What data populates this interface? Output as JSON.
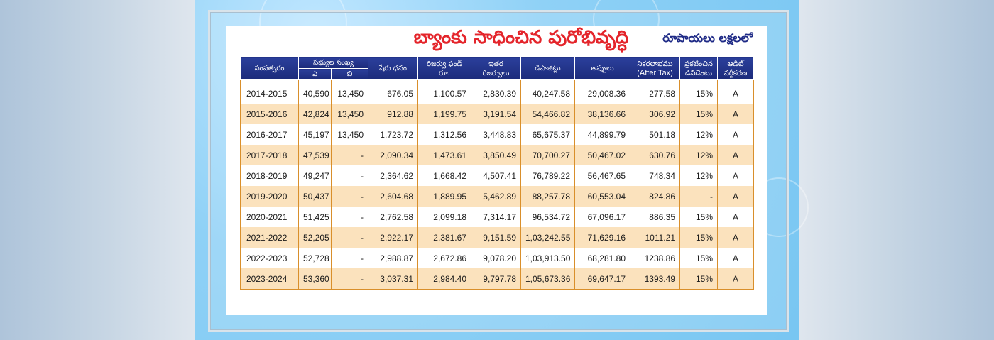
{
  "title": "బ్యాంకు సాధించిన పురోభివృద్ధి",
  "unit_note": "రూపాయలు లక్షలలో",
  "headers": {
    "year": "సంవత్సరం",
    "members": "సభ్యుల సంఖ్య",
    "members_a": "ఎ",
    "members_b": "బి",
    "share_capital": "షేరు ధనం",
    "reserve_fund_1": "రిజర్వు ఫండ్",
    "reserve_fund_2": "రూ.",
    "other_reserves_1": "ఇతర",
    "other_reserves_2": "రిజర్వులు",
    "deposits": "డిపాజిట్లు",
    "loans": "అప్పులు",
    "net_profit_1": "నికరలాభము",
    "net_profit_2": "(After Tax)",
    "dividend_1": "ప్రకటించిన",
    "dividend_2": "డివిడెంటు",
    "audit_1": "ఆడిట్",
    "audit_2": "వర్గీకరణ"
  },
  "rows": [
    {
      "year": "2014-2015",
      "a": "40,590",
      "b": "13,450",
      "share": "676.05",
      "reserve": "1,100.57",
      "other": "2,830.39",
      "deposits": "40,247.58",
      "loans": "29,008.36",
      "profit": "277.58",
      "dividend": "15%",
      "audit": "A"
    },
    {
      "year": "2015-2016",
      "a": "42,824",
      "b": "13,450",
      "share": "912.88",
      "reserve": "1,199.75",
      "other": "3,191.54",
      "deposits": "54,466.82",
      "loans": "38,136.66",
      "profit": "306.92",
      "dividend": "15%",
      "audit": "A"
    },
    {
      "year": "2016-2017",
      "a": "45,197",
      "b": "13,450",
      "share": "1,723.72",
      "reserve": "1,312.56",
      "other": "3,448.83",
      "deposits": "65,675.37",
      "loans": "44,899.79",
      "profit": "501.18",
      "dividend": "12%",
      "audit": "A"
    },
    {
      "year": "2017-2018",
      "a": "47,539",
      "b": "-",
      "share": "2,090.34",
      "reserve": "1,473.61",
      "other": "3,850.49",
      "deposits": "70,700.27",
      "loans": "50,467.02",
      "profit": "630.76",
      "dividend": "12%",
      "audit": "A"
    },
    {
      "year": "2018-2019",
      "a": "49,247",
      "b": "-",
      "share": "2,364.62",
      "reserve": "1,668.42",
      "other": "4,507.41",
      "deposits": "76,789.22",
      "loans": "56,467.65",
      "profit": "748.34",
      "dividend": "12%",
      "audit": "A"
    },
    {
      "year": "2019-2020",
      "a": "50,437",
      "b": "-",
      "share": "2,604.68",
      "reserve": "1,889.95",
      "other": "5,462.89",
      "deposits": "88,257.78",
      "loans": "60,553.04",
      "profit": "824.86",
      "dividend": "-",
      "audit": "A"
    },
    {
      "year": "2020-2021",
      "a": "51,425",
      "b": "-",
      "share": "2,762.58",
      "reserve": "2,099.18",
      "other": "7,314.17",
      "deposits": "96,534.72",
      "loans": "67,096.17",
      "profit": "886.35",
      "dividend": "15%",
      "audit": "A"
    },
    {
      "year": "2021-2022",
      "a": "52,205",
      "b": "-",
      "share": "2,922.17",
      "reserve": "2,381.67",
      "other": "9,151.59",
      "deposits": "1,03,242.55",
      "loans": "71,629.16",
      "profit": "1011.21",
      "dividend": "15%",
      "audit": "A"
    },
    {
      "year": "2022-2023",
      "a": "52,728",
      "b": "-",
      "share": "2,988.87",
      "reserve": "2,672.86",
      "other": "9,078.20",
      "deposits": "1,03,913.50",
      "loans": "68,281.80",
      "profit": "1238.86",
      "dividend": "15%",
      "audit": "A"
    },
    {
      "year": "2023-2024",
      "a": "53,360",
      "b": "-",
      "share": "3,037.31",
      "reserve": "2,984.40",
      "other": "9,797.78",
      "deposits": "1,05,673.36",
      "loans": "69,647.17",
      "profit": "1393.49",
      "dividend": "15%",
      "audit": "A"
    }
  ]
}
